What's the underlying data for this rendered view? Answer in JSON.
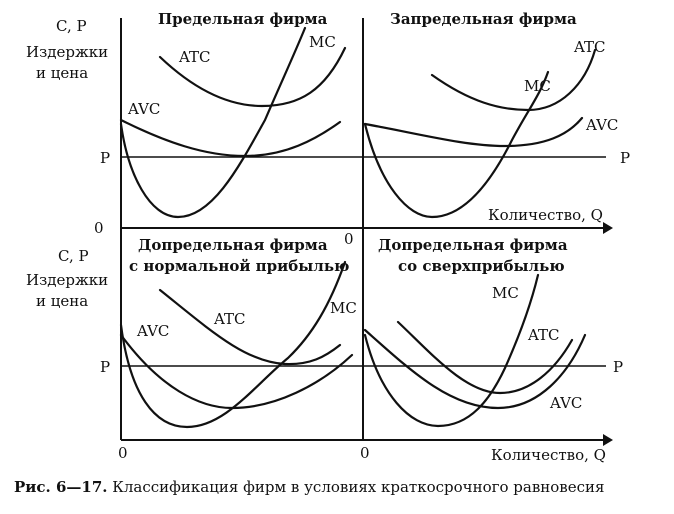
{
  "axes": {
    "y_top": "C, P",
    "y_desc_1": "Издержки",
    "y_desc_2": "и цена",
    "y_bottom": "C, P",
    "y_desc_3": "Издержки",
    "y_desc_4": "и цена",
    "x_label_top": "Количество, Q",
    "x_label_bottom": "Количество, Q",
    "zero_top_left": "0",
    "zero_top_right": "0",
    "zero_bottom_left": "0",
    "zero_bottom_right": "0",
    "price_left_top": "P",
    "price_right_top": "P",
    "price_left_bottom": "P",
    "price_right_bottom": "P"
  },
  "panels": {
    "top_left": {
      "title": "Предельная фирма",
      "atc": "ATC",
      "avc": "AVC",
      "mc": "MC"
    },
    "top_right": {
      "title": "Запредельная фирма",
      "atc": "ATC",
      "avc": "AVC",
      "mc": "MC"
    },
    "bottom_left": {
      "title_1": "Допредельная фирма",
      "title_2": "с нормальной прибылью",
      "atc": "ATC",
      "avc": "AVC",
      "mc": "MC"
    },
    "bottom_right": {
      "title_1": "Допредельная фирма",
      "title_2": "со сверхприбылью",
      "atc": "ATC",
      "avc": "AVC",
      "mc": "MC"
    }
  },
  "caption": {
    "number": "Рис. 6—17.",
    "text": "Классификация фирм в условиях краткосрочного равновесия"
  }
}
